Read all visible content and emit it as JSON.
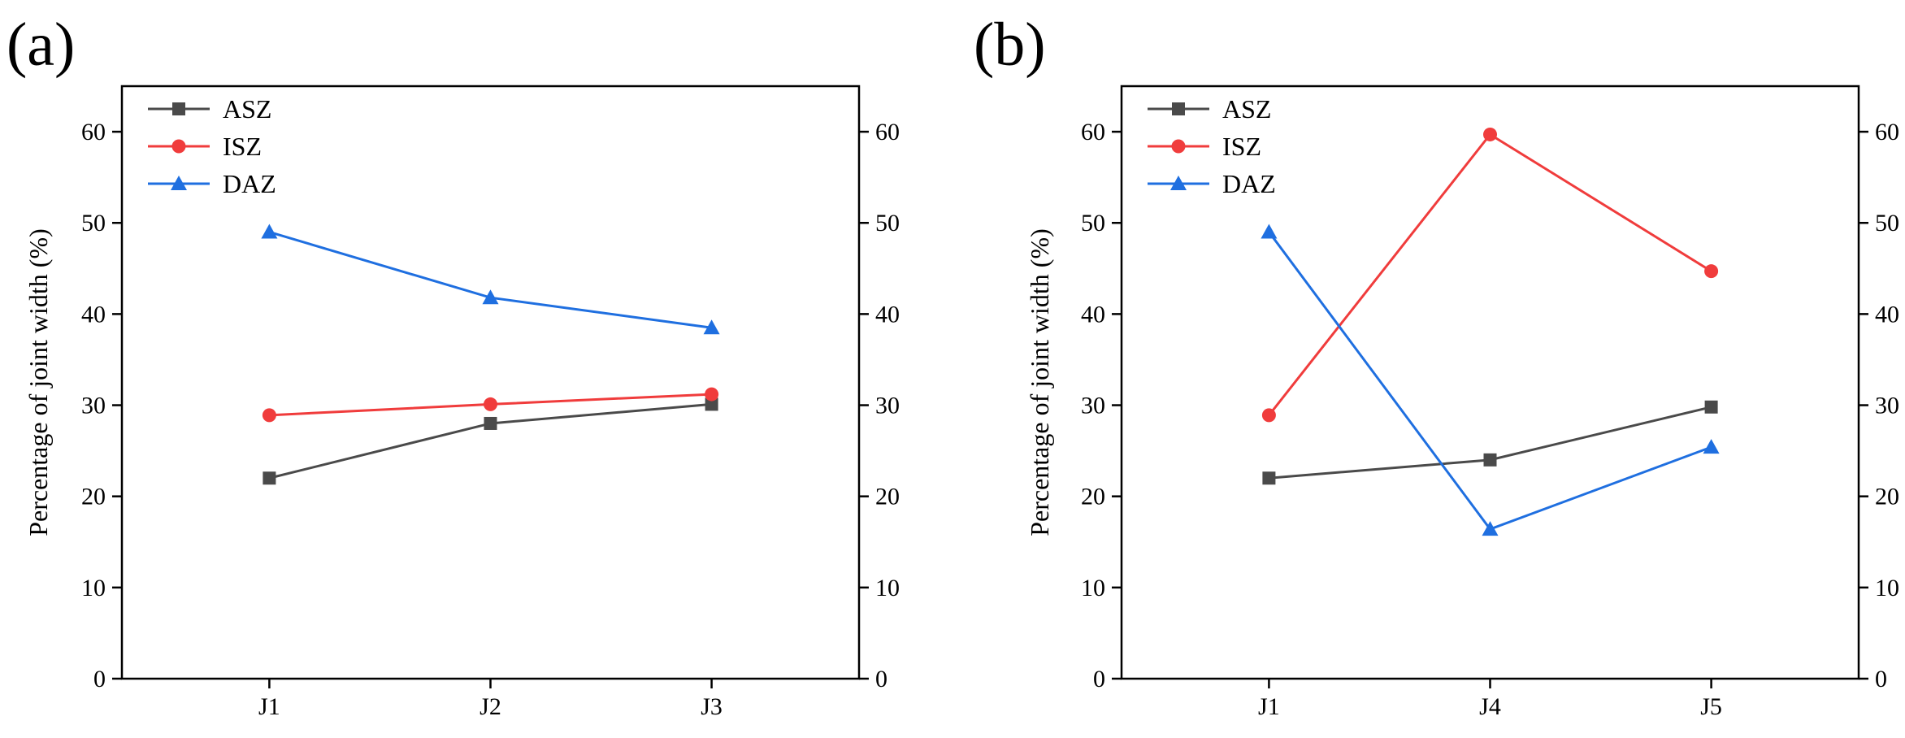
{
  "chart_data": [
    {
      "type": "line",
      "panel_label": "(a)",
      "categories": [
        "J1",
        "J2",
        "J3"
      ],
      "ylabel": "Percentage of joint width (%)",
      "ylim": [
        0,
        65
      ],
      "yticks": [
        0,
        10,
        20,
        30,
        40,
        50,
        60
      ],
      "right_axis_mirrored": true,
      "legend_position": "top-left",
      "series": [
        {
          "name": "ASZ",
          "color": "#4a4a4a",
          "marker": "square",
          "values": [
            22.0,
            28.0,
            30.1
          ]
        },
        {
          "name": "ISZ",
          "color": "#f03c3c",
          "marker": "circle",
          "values": [
            28.9,
            30.1,
            31.2
          ]
        },
        {
          "name": "DAZ",
          "color": "#1f6fe0",
          "marker": "triangle",
          "values": [
            49.0,
            41.8,
            38.5
          ]
        }
      ]
    },
    {
      "type": "line",
      "panel_label": "(b)",
      "categories": [
        "J1",
        "J4",
        "J5"
      ],
      "ylabel": "Percentage of joint width (%)",
      "ylim": [
        0,
        65
      ],
      "yticks": [
        0,
        10,
        20,
        30,
        40,
        50,
        60
      ],
      "right_axis_mirrored": true,
      "legend_position": "top-left",
      "series": [
        {
          "name": "ASZ",
          "color": "#4a4a4a",
          "marker": "square",
          "values": [
            22.0,
            24.0,
            29.8
          ]
        },
        {
          "name": "ISZ",
          "color": "#f03c3c",
          "marker": "circle",
          "values": [
            28.9,
            59.7,
            44.7
          ]
        },
        {
          "name": "DAZ",
          "color": "#1f6fe0",
          "marker": "triangle",
          "values": [
            49.0,
            16.4,
            25.4
          ]
        }
      ]
    }
  ]
}
